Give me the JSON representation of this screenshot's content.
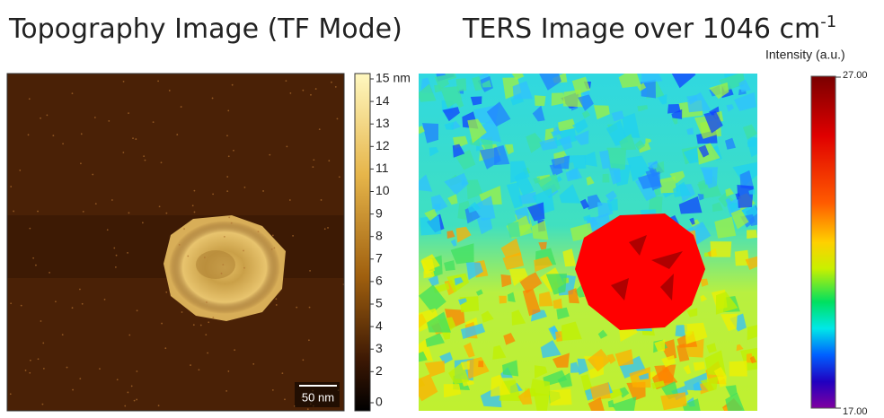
{
  "left_panel": {
    "title": "Topography Image (TF Mode)",
    "scale_bar": "50 nm",
    "colorbar_labels": [
      "15 nm",
      "14",
      "13",
      "12",
      "11",
      "10",
      "9",
      "8",
      "7",
      "6",
      "5",
      "4",
      "3",
      "2",
      "0"
    ]
  },
  "right_panel": {
    "title": "TERS Image over 1046 cm",
    "title_superscript": "-1",
    "colorbar_title": "Intensity (a.u.)",
    "colorbar_max": "27.00",
    "colorbar_min": "17.00"
  }
}
